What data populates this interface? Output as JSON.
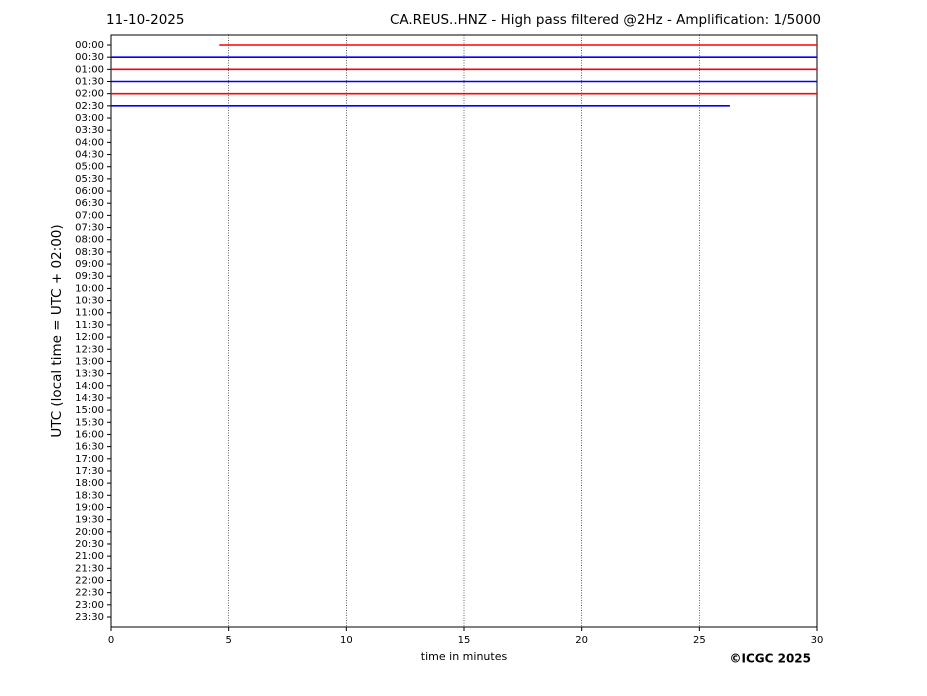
{
  "chart_data": {
    "type": "helicorder",
    "date": "11-10-2025",
    "title": "CA.REUS..HNZ - High pass filtered @2Hz - Amplification: 1/5000",
    "xlabel": "time in minutes",
    "ylabel": "UTC (local time = UTC + 02:00)",
    "copyright": "©ICGC 2025",
    "categories": [
      "00:00",
      "00:30",
      "01:00",
      "01:30",
      "02:00",
      "02:30",
      "03:00",
      "03:30",
      "04:00",
      "04:30",
      "05:00",
      "05:30",
      "06:00",
      "06:30",
      "07:00",
      "07:30",
      "08:00",
      "08:30",
      "09:00",
      "09:30",
      "10:00",
      "10:30",
      "11:00",
      "11:30",
      "12:00",
      "12:30",
      "13:00",
      "13:30",
      "14:00",
      "14:30",
      "15:00",
      "15:30",
      "16:00",
      "16:30",
      "17:00",
      "17:30",
      "18:00",
      "18:30",
      "19:00",
      "19:30",
      "20:00",
      "20:30",
      "21:00",
      "21:30",
      "22:00",
      "22:30",
      "23:00",
      "23:30"
    ],
    "trace_start": [
      4.6,
      0,
      0,
      0,
      0,
      0,
      null,
      null,
      null,
      null,
      null,
      null,
      null,
      null,
      null,
      null,
      null,
      null,
      null,
      null,
      null,
      null,
      null,
      null,
      null,
      null,
      null,
      null,
      null,
      null,
      null,
      null,
      null,
      null,
      null,
      null,
      null,
      null,
      null,
      null,
      null,
      null,
      null,
      null,
      null,
      null,
      null,
      null
    ],
    "trace_end": [
      30,
      30,
      30,
      30,
      30,
      26.3,
      null,
      null,
      null,
      null,
      null,
      null,
      null,
      null,
      null,
      null,
      null,
      null,
      null,
      null,
      null,
      null,
      null,
      null,
      null,
      null,
      null,
      null,
      null,
      null,
      null,
      null,
      null,
      null,
      null,
      null,
      null,
      null,
      null,
      null,
      null,
      null,
      null,
      null,
      null,
      null,
      null,
      null
    ],
    "trace_colors": [
      "#ff0000",
      "#0000ff"
    ],
    "xlim": [
      0,
      30
    ],
    "xticks": [
      0,
      5,
      10,
      15,
      20,
      25,
      30
    ],
    "grid": true
  }
}
